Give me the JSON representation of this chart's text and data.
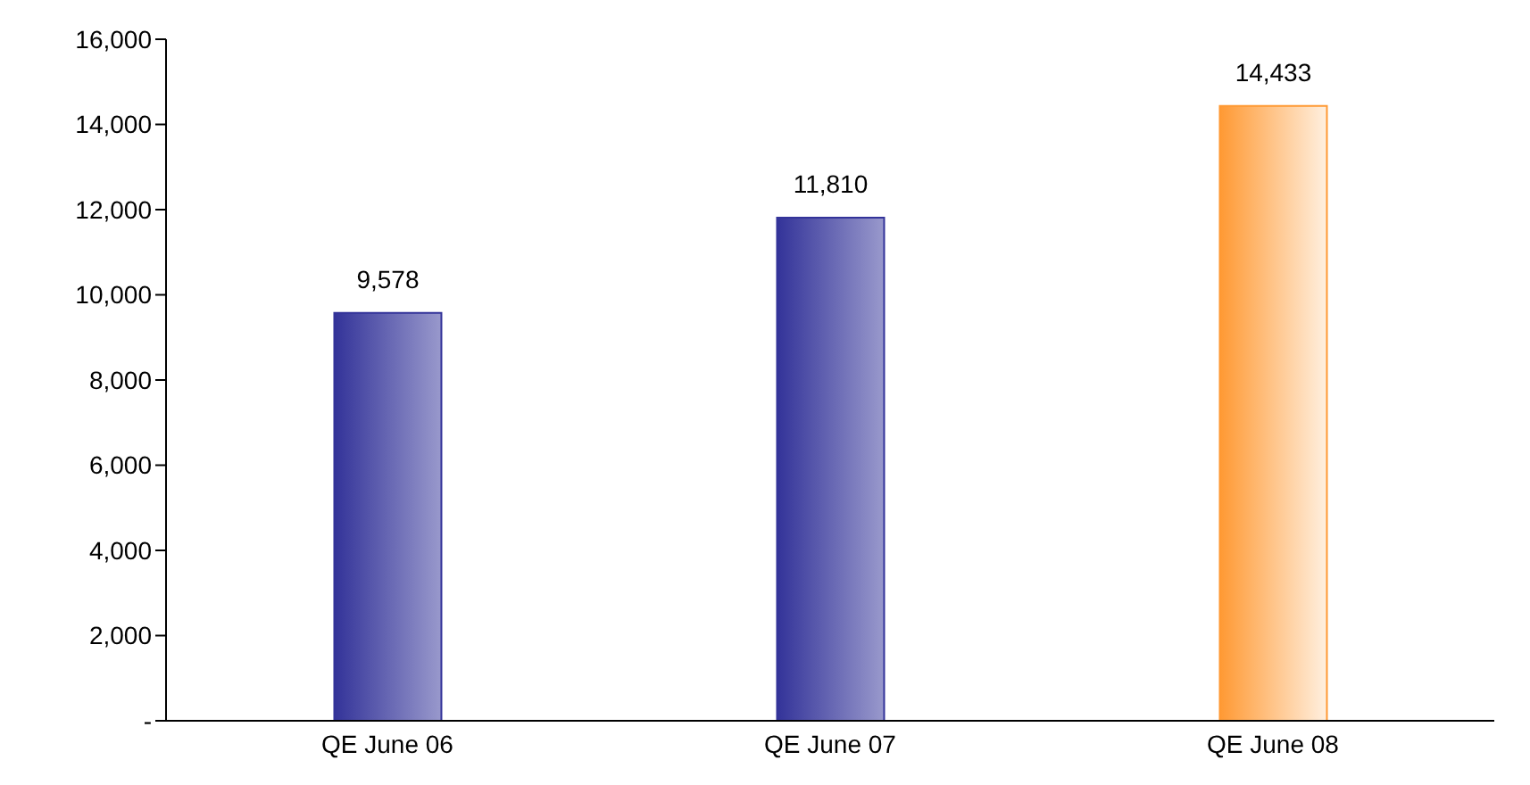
{
  "chart_data": {
    "type": "bar",
    "categories": [
      "QE June 06",
      "QE June 07",
      "QE June 08"
    ],
    "values": [
      9578,
      11810,
      14433
    ],
    "colors": [
      "#333399",
      "#333399",
      "#ff9933"
    ],
    "ylim": [
      0,
      16000
    ],
    "yticks": [
      {
        "value": 0,
        "label": "-"
      },
      {
        "value": 2000,
        "label": "2,000"
      },
      {
        "value": 4000,
        "label": "4,000"
      },
      {
        "value": 6000,
        "label": "6,000"
      },
      {
        "value": 8000,
        "label": "8,000"
      },
      {
        "value": 10000,
        "label": "10,000"
      },
      {
        "value": 12000,
        "label": "12,000"
      },
      {
        "value": 14000,
        "label": "14,000"
      },
      {
        "value": 16000,
        "label": "16,000"
      }
    ],
    "value_labels": [
      "9,578",
      "11,810",
      "14,433"
    ],
    "grid": false,
    "legend": false
  }
}
